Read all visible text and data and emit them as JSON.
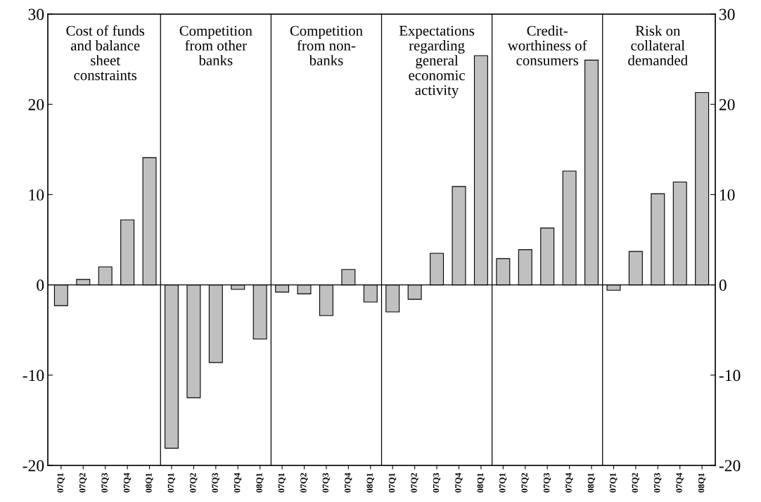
{
  "chart_data": {
    "type": "bar",
    "categories": [
      "07Q1",
      "07Q2",
      "07Q3",
      "07Q4",
      "08Q1",
      "07Q1",
      "07Q2",
      "07Q3",
      "07Q4",
      "08Q1",
      "07Q1",
      "07Q2",
      "07Q3",
      "07Q4",
      "08Q1",
      "07Q1",
      "07Q2",
      "07Q3",
      "07Q4",
      "08Q1",
      "07Q1",
      "07Q2",
      "07Q3",
      "07Q4",
      "08Q1",
      "07Q1",
      "07Q2",
      "07Q3",
      "07Q4",
      "08Q1"
    ],
    "values": [
      -2.3,
      0.6,
      2.0,
      7.2,
      14.1,
      -18.1,
      -12.5,
      -8.6,
      -0.5,
      -6.0,
      -0.8,
      -1.0,
      -3.4,
      1.7,
      -1.9,
      -3.0,
      -1.6,
      3.5,
      10.9,
      25.4,
      2.9,
      3.9,
      6.3,
      12.6,
      24.9,
      -0.6,
      3.7,
      10.1,
      11.4,
      21.3
    ],
    "color": "#c0c0c0",
    "ylim": [
      -20,
      30
    ],
    "yticks": [
      -20,
      -10,
      0,
      10,
      20,
      30
    ],
    "y2lim": [
      -20,
      30
    ],
    "y2ticks": [
      -20,
      -10,
      0,
      10,
      20,
      30
    ],
    "annotations": [
      "Cost of funds\nand balance\nsheet\nconstraints",
      "Competition\nfrom other\nbanks",
      "Competition\nfrom non-\nbanks",
      "Expectations\nregarding\ngeneral\neconomic\nactivity",
      "Credit-\nworthiness of\nconsumers",
      "Risk on\ncollateral\ndemanded"
    ],
    "ref_lines": [
      {
        "axis": "y",
        "value": 0
      }
    ],
    "grid": false
  }
}
